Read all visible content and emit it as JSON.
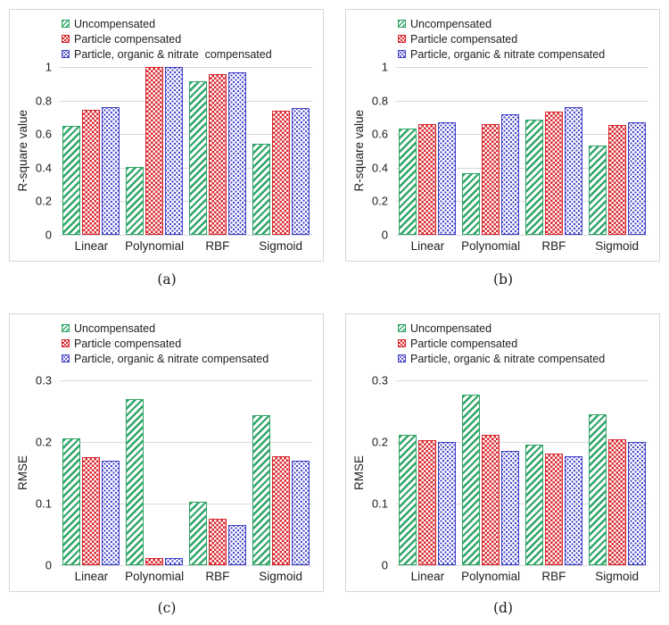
{
  "figure": {
    "background": "#ffffff",
    "captions": [
      "(a)",
      "(b)",
      "(c)",
      "(d)"
    ]
  },
  "palette": {
    "green": "#2fa566",
    "red": "#d9262c",
    "blue": "#4141c8",
    "gridline": "#dadada",
    "panel_border": "#d6d6d6",
    "text": "#212121"
  },
  "series_patterns": [
    "green-diagonal-hatch",
    "red-checkerboard",
    "blue-dots"
  ],
  "chart_data": [
    {
      "id": "a",
      "type": "bar",
      "caption": "(a)",
      "ylabel": "R-square value",
      "ylim": [
        0,
        1
      ],
      "ytick_values": [
        0,
        0.2,
        0.4,
        0.6,
        0.8,
        1
      ],
      "ytick_labels": [
        "0",
        "0.2",
        "0.4",
        "0.6",
        "0.8",
        "1"
      ],
      "categories": [
        "Linear",
        "Polynomial",
        "RBF",
        "Sigmoid"
      ],
      "legend": [
        "Uncompensated",
        "Particle compensated",
        "Particle, organic & nitrate  compensated"
      ],
      "grid": true,
      "legend_position": "top-left",
      "series": [
        {
          "name": "Uncompensated",
          "values": [
            0.65,
            0.403,
            0.915,
            0.54
          ]
        },
        {
          "name": "Particle compensated",
          "values": [
            0.745,
            1.0,
            0.957,
            0.742
          ]
        },
        {
          "name": "Particle, organic & nitrate compensated",
          "values": [
            0.762,
            1.0,
            0.967,
            0.757
          ]
        }
      ]
    },
    {
      "id": "b",
      "type": "bar",
      "caption": "(b)",
      "ylabel": "R-square value",
      "ylim": [
        0,
        1
      ],
      "ytick_values": [
        0,
        0.2,
        0.4,
        0.6,
        0.8,
        1
      ],
      "ytick_labels": [
        "0",
        "0.2",
        "0.4",
        "0.6",
        "0.8",
        "1"
      ],
      "categories": [
        "Linear",
        "Polynomial",
        "RBF",
        "Sigmoid"
      ],
      "legend": [
        "Uncompensated",
        "Particle compensated",
        "Particle, organic & nitrate compensated"
      ],
      "grid": true,
      "legend_position": "top-left",
      "series": [
        {
          "name": "Uncompensated",
          "values": [
            0.635,
            0.365,
            0.688,
            0.533
          ]
        },
        {
          "name": "Particle compensated",
          "values": [
            0.66,
            0.658,
            0.733,
            0.655
          ]
        },
        {
          "name": "Particle, organic & nitrate compensated",
          "values": [
            0.672,
            0.72,
            0.76,
            0.67
          ]
        }
      ]
    },
    {
      "id": "c",
      "type": "bar",
      "caption": "(c)",
      "ylabel": "RMSE",
      "ylim": [
        0,
        0.3
      ],
      "ytick_values": [
        0,
        0.1,
        0.2,
        0.3
      ],
      "ytick_labels": [
        "0",
        "0.1",
        "0.2",
        "0.3"
      ],
      "categories": [
        "Linear",
        "Polynomial",
        "RBF",
        "Sigmoid"
      ],
      "legend": [
        "Uncompensated",
        "Particle compensated",
        "Particle, organic & nitrate compensated"
      ],
      "grid": true,
      "legend_position": "top-left",
      "series": [
        {
          "name": "Uncompensated",
          "values": [
            0.206,
            0.269,
            0.103,
            0.243
          ]
        },
        {
          "name": "Particle compensated",
          "values": [
            0.176,
            0.011,
            0.075,
            0.177
          ]
        },
        {
          "name": "Particle, organic & nitrate compensated",
          "values": [
            0.17,
            0.011,
            0.065,
            0.17
          ]
        }
      ]
    },
    {
      "id": "d",
      "type": "bar",
      "caption": "(d)",
      "ylabel": "RMSE",
      "ylim": [
        0,
        0.3
      ],
      "ytick_values": [
        0,
        0.1,
        0.2,
        0.3
      ],
      "ytick_labels": [
        "0",
        "0.1",
        "0.2",
        "0.3"
      ],
      "categories": [
        "Linear",
        "Polynomial",
        "RBF",
        "Sigmoid"
      ],
      "legend": [
        "Uncompensated",
        "Particle compensated",
        "Particle, organic & nitrate compensated"
      ],
      "grid": true,
      "legend_position": "top-left",
      "series": [
        {
          "name": "Uncompensated",
          "values": [
            0.211,
            0.277,
            0.195,
            0.245
          ]
        },
        {
          "name": "Particle compensated",
          "values": [
            0.203,
            0.211,
            0.181,
            0.204
          ]
        },
        {
          "name": "Particle, organic & nitrate compensated",
          "values": [
            0.2,
            0.186,
            0.177,
            0.2
          ]
        }
      ]
    }
  ]
}
